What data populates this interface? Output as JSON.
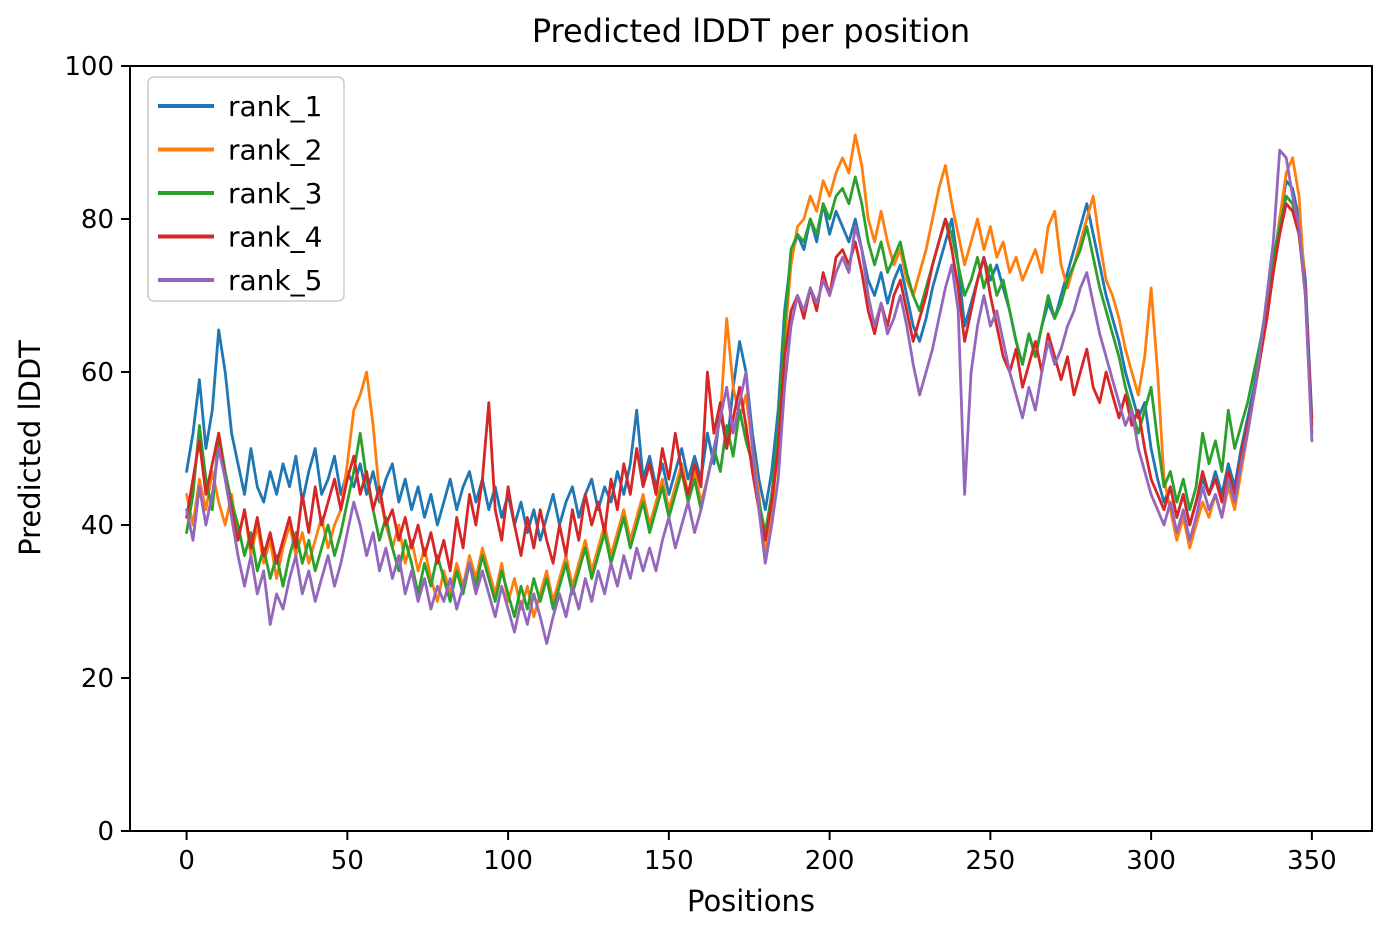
{
  "figure": {
    "background": "#ffffff"
  },
  "chart_data": {
    "type": "line",
    "title": "Predicted lDDT per position",
    "xlabel": "Positions",
    "ylabel": "Predicted lDDT",
    "xlim": [
      -17.6,
      368.7
    ],
    "ylim": [
      0,
      100
    ],
    "xticks": [
      0,
      50,
      100,
      150,
      200,
      250,
      300,
      350
    ],
    "yticks": [
      0,
      20,
      40,
      60,
      80,
      100
    ],
    "grid": false,
    "legend_position": "upper left",
    "x_start": 0,
    "x_step": 2,
    "series": [
      {
        "name": "rank_1",
        "color": "#1f77b4",
        "values": [
          47,
          52,
          59,
          50,
          55,
          65.5,
          60,
          52,
          48,
          44,
          50,
          45,
          43,
          47,
          44,
          48,
          45,
          49,
          43,
          47,
          50,
          44,
          46,
          49,
          44,
          47,
          45,
          48,
          44,
          47,
          43,
          46,
          48,
          43,
          46,
          42,
          45,
          41,
          44,
          40,
          43,
          46,
          42,
          45,
          47,
          43,
          46,
          42,
          45,
          41,
          44,
          40,
          43,
          39,
          42,
          38,
          41,
          44,
          40,
          43,
          45,
          41,
          44,
          46,
          42,
          45,
          43,
          47,
          44,
          48,
          55,
          46,
          49,
          45,
          48,
          44,
          47,
          50,
          46,
          49,
          46,
          52,
          48,
          55,
          50,
          58,
          64,
          60,
          52,
          46,
          42,
          47,
          55,
          68,
          75,
          78,
          76,
          80,
          77,
          82,
          78,
          81,
          79,
          77,
          80,
          76,
          72,
          70,
          73,
          69,
          72,
          74,
          70,
          66,
          64,
          67,
          71,
          74,
          77,
          80,
          74,
          66,
          69,
          72,
          75,
          72,
          74,
          71,
          68,
          64,
          61,
          65,
          62,
          66,
          69,
          67,
          70,
          73,
          76,
          79,
          82,
          78,
          74,
          70,
          67,
          64,
          60,
          57,
          54,
          56,
          50,
          46,
          43,
          45,
          41,
          44,
          40,
          43,
          46,
          44,
          47,
          44,
          48,
          45,
          50,
          54,
          58,
          63,
          68,
          74,
          80,
          85,
          84,
          80,
          72,
          54
        ]
      },
      {
        "name": "rank_2",
        "color": "#ff7f0e",
        "values": [
          44,
          40,
          46,
          42,
          47,
          43,
          40,
          44,
          38,
          42,
          36,
          40,
          35,
          38,
          33,
          37,
          40,
          36,
          39,
          35,
          38,
          41,
          37,
          40,
          42,
          48,
          55,
          57,
          60,
          53,
          44,
          40,
          37,
          40,
          35,
          38,
          34,
          37,
          33,
          30,
          34,
          31,
          35,
          32,
          36,
          33,
          37,
          34,
          31,
          35,
          30,
          33,
          29,
          32,
          28,
          31,
          34,
          30,
          33,
          36,
          32,
          35,
          38,
          34,
          37,
          40,
          36,
          39,
          42,
          38,
          41,
          44,
          40,
          43,
          46,
          42,
          45,
          48,
          44,
          47,
          43,
          46,
          50,
          54,
          67,
          58,
          54,
          57,
          50,
          44,
          36,
          42,
          50,
          64,
          74,
          79,
          80,
          83,
          81,
          85,
          83,
          86,
          88,
          86,
          91,
          87,
          80,
          77,
          81,
          77,
          74,
          76,
          72,
          70,
          73,
          76,
          80,
          84,
          87,
          82,
          78,
          74,
          77,
          80,
          76,
          79,
          75,
          77,
          73,
          75,
          72,
          74,
          76,
          73,
          79,
          81,
          74,
          71,
          74,
          77,
          80,
          83,
          77,
          72,
          70,
          67,
          63,
          60,
          57,
          62,
          71,
          60,
          46,
          42,
          38,
          41,
          37,
          40,
          43,
          41,
          44,
          41,
          45,
          42,
          47,
          52,
          57,
          62,
          67,
          73,
          80,
          86,
          88,
          83,
          70,
          52
        ]
      },
      {
        "name": "rank_3",
        "color": "#2ca02c",
        "values": [
          39,
          44,
          53,
          46,
          42,
          52,
          47,
          43,
          40,
          36,
          39,
          34,
          37,
          33,
          36,
          32,
          36,
          39,
          35,
          38,
          34,
          37,
          40,
          36,
          39,
          43,
          47,
          52,
          46,
          42,
          38,
          41,
          37,
          34,
          38,
          35,
          31,
          35,
          32,
          36,
          33,
          30,
          34,
          31,
          35,
          32,
          36,
          33,
          30,
          34,
          31,
          28,
          32,
          29,
          33,
          30,
          33,
          29,
          32,
          35,
          31,
          34,
          37,
          33,
          36,
          39,
          35,
          38,
          41,
          37,
          40,
          43,
          39,
          42,
          45,
          41,
          44,
          47,
          43,
          46,
          42,
          46,
          50,
          47,
          53,
          49,
          55,
          51,
          48,
          43,
          39,
          44,
          52,
          66,
          76,
          78,
          77,
          80,
          78,
          82,
          80,
          83,
          84,
          82,
          85.5,
          82,
          77,
          74,
          77,
          73,
          75,
          77,
          73,
          70,
          68,
          71,
          74,
          77,
          80,
          78,
          74,
          70,
          72,
          75,
          71,
          74,
          70,
          72,
          68,
          64,
          61,
          65,
          62,
          66,
          70,
          67,
          69,
          72,
          74,
          76,
          79,
          75,
          71,
          68,
          65,
          62,
          58,
          55,
          52,
          55,
          58,
          51,
          45,
          47,
          43,
          46,
          42,
          45,
          52,
          48,
          51,
          47,
          55,
          50,
          53,
          56,
          60,
          64,
          69,
          75,
          79,
          83,
          82,
          78,
          70,
          52
        ]
      },
      {
        "name": "rank_4",
        "color": "#d62728",
        "values": [
          41,
          46,
          51,
          44,
          48,
          52,
          46,
          42,
          38,
          42,
          37,
          41,
          36,
          39,
          35,
          38,
          41,
          37,
          44,
          39,
          45,
          40,
          43,
          46,
          42,
          46,
          49,
          44,
          47,
          42,
          45,
          40,
          42,
          38,
          41,
          37,
          40,
          36,
          39,
          35,
          38,
          34,
          41,
          37,
          44,
          40,
          46,
          56,
          42,
          38,
          45,
          40,
          36,
          41,
          37,
          42,
          38,
          35,
          40,
          36,
          42,
          38,
          44,
          40,
          43,
          39,
          46,
          42,
          48,
          44,
          50,
          45,
          48,
          44,
          50,
          46,
          52,
          47,
          44,
          48,
          45,
          60,
          52,
          56,
          50,
          54,
          58,
          53,
          47,
          42,
          38,
          43,
          50,
          62,
          68,
          70,
          67,
          71,
          68,
          73,
          70,
          75,
          76,
          74,
          77,
          73,
          68,
          65,
          69,
          66,
          70,
          72,
          68,
          64,
          67,
          70,
          74,
          77,
          80,
          76,
          71,
          64,
          68,
          72,
          75,
          70,
          66,
          62,
          60,
          63,
          58,
          61,
          64,
          60,
          65,
          62,
          59,
          62,
          57,
          60,
          63,
          58,
          56,
          60,
          57,
          54,
          57,
          53,
          55,
          50,
          46,
          44,
          42,
          45,
          41,
          44,
          40,
          43,
          47,
          44,
          46,
          43,
          47,
          44,
          49,
          53,
          57,
          62,
          67,
          73,
          78,
          82,
          81,
          78,
          71,
          53
        ]
      },
      {
        "name": "rank_5",
        "color": "#9467bd",
        "values": [
          42,
          38,
          45,
          40,
          44,
          50,
          46,
          41,
          36,
          32,
          36,
          31,
          34,
          27,
          31,
          29,
          33,
          36,
          31,
          34,
          30,
          33,
          36,
          32,
          35,
          39,
          43,
          40,
          36,
          39,
          34,
          37,
          33,
          36,
          31,
          34,
          30,
          33,
          29,
          32,
          30,
          33,
          29,
          32,
          35,
          31,
          34,
          31,
          28,
          32,
          29,
          26,
          30,
          27,
          31,
          28,
          24.5,
          28,
          31,
          28,
          32,
          29,
          33,
          30,
          34,
          31,
          35,
          32,
          36,
          33,
          37,
          34,
          37,
          34,
          38,
          41,
          37,
          40,
          43,
          39,
          42,
          46,
          50,
          54,
          58,
          52,
          56,
          60,
          50,
          42,
          35,
          40,
          46,
          58,
          66,
          70,
          68,
          71,
          69,
          72,
          70,
          73,
          75,
          73,
          79,
          76,
          70,
          66,
          69,
          65,
          67,
          70,
          66,
          61,
          57,
          60,
          63,
          67,
          71,
          74,
          68,
          44,
          60,
          66,
          70,
          66,
          68,
          64,
          60,
          57,
          54,
          58,
          55,
          60,
          64,
          61,
          63,
          66,
          68,
          71,
          73,
          69,
          65,
          62,
          59,
          56,
          53,
          55,
          50,
          47,
          44,
          42,
          40,
          43,
          39,
          42,
          38,
          41,
          45,
          42,
          44,
          41,
          46,
          43,
          48,
          52,
          57,
          63,
          70,
          77,
          89,
          88,
          83,
          79,
          70,
          51
        ]
      }
    ]
  }
}
